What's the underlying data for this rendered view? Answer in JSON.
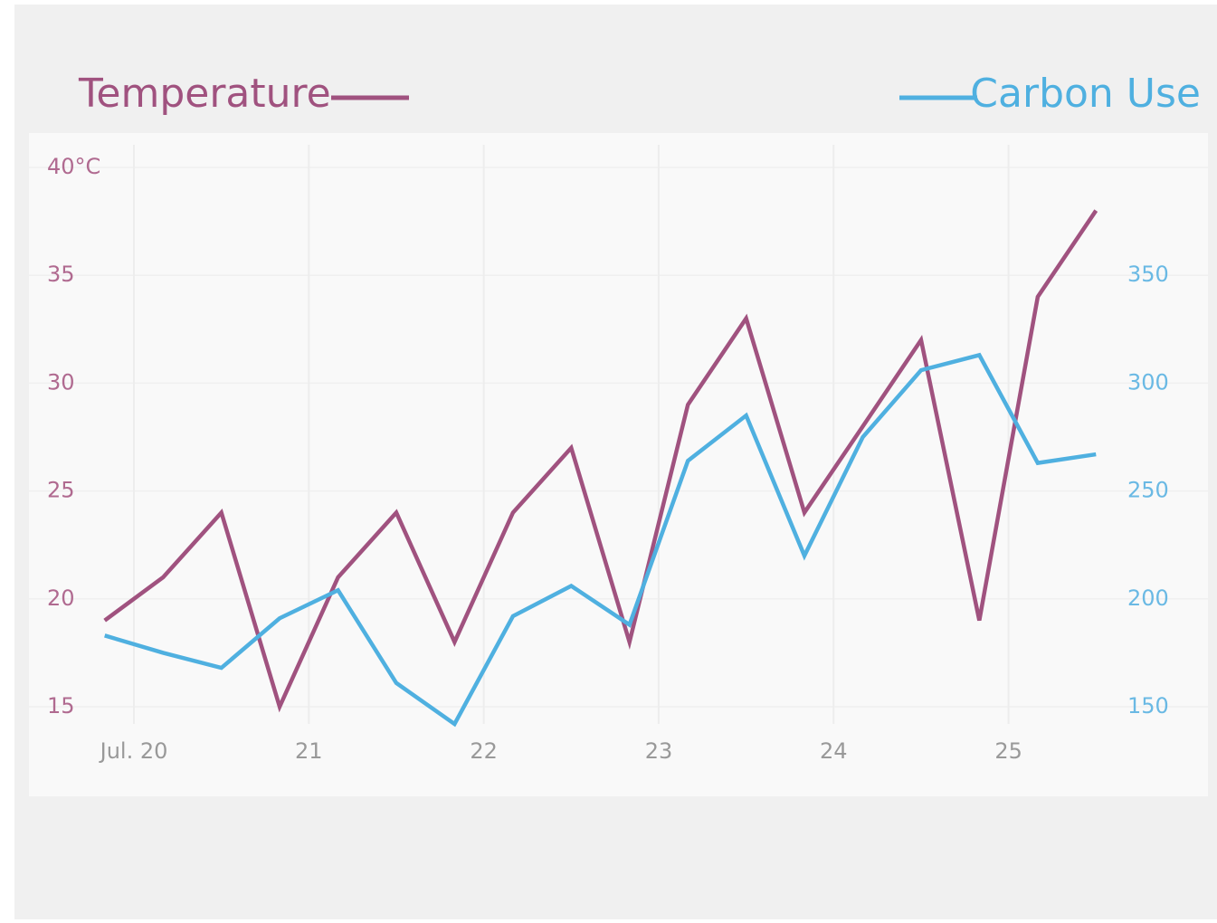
{
  "chart_data": {
    "type": "line",
    "x": [
      19.833,
      20.167,
      20.5,
      20.833,
      21.167,
      21.5,
      21.833,
      22.167,
      22.5,
      22.833,
      23.167,
      23.5,
      23.833,
      24.167,
      24.5,
      24.833,
      25.167,
      25.5
    ],
    "series": [
      {
        "name": "Temperature",
        "color": "#a0527f",
        "values": [
          19,
          21,
          24,
          15,
          21,
          24,
          18,
          24,
          27,
          18,
          29,
          33,
          24,
          28,
          32,
          19,
          34,
          38
        ]
      },
      {
        "name": "Carbon Use",
        "color": "#4fb0e0",
        "axis": "y2",
        "values": [
          183,
          175,
          168,
          191,
          204,
          161,
          142,
          192,
          206,
          188,
          264,
          285,
          220,
          275,
          306,
          313,
          263,
          267
        ]
      }
    ],
    "xlim": [
      19.4,
      26.14
    ],
    "xticks": [
      {
        "value": 20,
        "label": "Jul. 20"
      },
      21,
      22,
      23,
      24,
      25
    ],
    "ylim": [
      15,
      40
    ],
    "yticks": [
      15,
      20,
      25,
      30,
      35,
      {
        "value": 40,
        "label": "40°C"
      }
    ],
    "y2lim": [
      150,
      400
    ],
    "y2ticks": [
      150,
      200,
      250,
      300,
      350
    ],
    "grid": true
  }
}
